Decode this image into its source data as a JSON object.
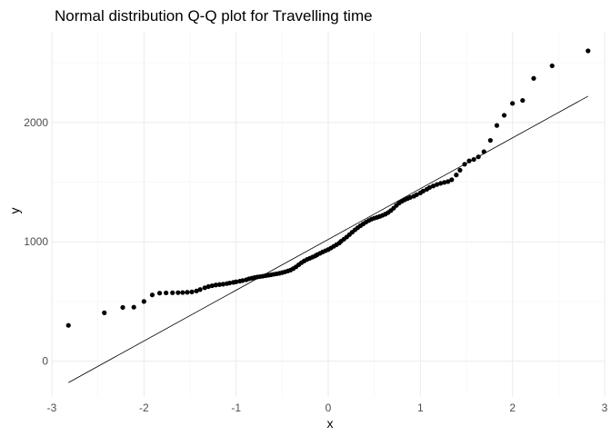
{
  "chart_data": {
    "type": "scatter",
    "title": "Normal distribution Q-Q plot for Travelling time",
    "xlabel": "x",
    "ylabel": "y",
    "xlim": [
      -3,
      3
    ],
    "ylim": [
      -300,
      2760
    ],
    "x_ticks": [
      -3,
      -2,
      -1,
      0,
      1,
      2,
      3
    ],
    "y_ticks": [
      0,
      1000,
      2000
    ],
    "grid": true,
    "legend": "none",
    "colors": {
      "points": "#000000",
      "line": "#000000",
      "grid": "#ebebeb"
    },
    "reference_line": {
      "x": [
        -2.82,
        2.82
      ],
      "y": [
        -180,
        2220
      ]
    },
    "points": [
      [
        -2.82,
        300
      ],
      [
        -2.43,
        405
      ],
      [
        -2.23,
        450
      ],
      [
        -2.11,
        452
      ],
      [
        -2.0,
        500
      ],
      [
        -1.91,
        555
      ],
      [
        -1.83,
        570
      ],
      [
        -1.76,
        572
      ],
      [
        -1.69,
        573
      ],
      [
        -1.63,
        574
      ],
      [
        -1.58,
        575
      ],
      [
        -1.53,
        577
      ],
      [
        -1.48,
        580
      ],
      [
        -1.43,
        588
      ],
      [
        -1.39,
        600
      ],
      [
        -1.34,
        615
      ],
      [
        -1.3,
        625
      ],
      [
        -1.26,
        632
      ],
      [
        -1.22,
        638
      ],
      [
        -1.18,
        642
      ],
      [
        -1.14,
        645
      ],
      [
        -1.1,
        650
      ],
      [
        -1.07,
        655
      ],
      [
        -1.03,
        660
      ],
      [
        -1.0,
        665
      ],
      [
        -0.96,
        670
      ],
      [
        -0.93,
        675
      ],
      [
        -0.89,
        682
      ],
      [
        -0.86,
        690
      ],
      [
        -0.83,
        695
      ],
      [
        -0.8,
        700
      ],
      [
        -0.77,
        705
      ],
      [
        -0.74,
        708
      ],
      [
        -0.71,
        712
      ],
      [
        -0.68,
        716
      ],
      [
        -0.65,
        720
      ],
      [
        -0.62,
        724
      ],
      [
        -0.59,
        728
      ],
      [
        -0.56,
        732
      ],
      [
        -0.53,
        736
      ],
      [
        -0.5,
        742
      ],
      [
        -0.47,
        748
      ],
      [
        -0.44,
        755
      ],
      [
        -0.41,
        763
      ],
      [
        -0.38,
        775
      ],
      [
        -0.35,
        790
      ],
      [
        -0.32,
        808
      ],
      [
        -0.29,
        825
      ],
      [
        -0.26,
        840
      ],
      [
        -0.23,
        852
      ],
      [
        -0.2,
        862
      ],
      [
        -0.17,
        872
      ],
      [
        -0.14,
        882
      ],
      [
        -0.12,
        892
      ],
      [
        -0.09,
        903
      ],
      [
        -0.06,
        915
      ],
      [
        -0.03,
        925
      ],
      [
        0.0,
        935
      ],
      [
        0.03,
        948
      ],
      [
        0.06,
        962
      ],
      [
        0.09,
        976
      ],
      [
        0.12,
        990
      ],
      [
        0.14,
        1005
      ],
      [
        0.17,
        1022
      ],
      [
        0.2,
        1040
      ],
      [
        0.23,
        1060
      ],
      [
        0.26,
        1080
      ],
      [
        0.29,
        1100
      ],
      [
        0.32,
        1118
      ],
      [
        0.35,
        1135
      ],
      [
        0.38,
        1150
      ],
      [
        0.41,
        1165
      ],
      [
        0.44,
        1178
      ],
      [
        0.47,
        1190
      ],
      [
        0.5,
        1198
      ],
      [
        0.53,
        1205
      ],
      [
        0.56,
        1213
      ],
      [
        0.59,
        1222
      ],
      [
        0.62,
        1232
      ],
      [
        0.65,
        1245
      ],
      [
        0.68,
        1262
      ],
      [
        0.71,
        1282
      ],
      [
        0.74,
        1305
      ],
      [
        0.77,
        1325
      ],
      [
        0.8,
        1340
      ],
      [
        0.83,
        1352
      ],
      [
        0.86,
        1362
      ],
      [
        0.89,
        1372
      ],
      [
        0.93,
        1382
      ],
      [
        0.96,
        1395
      ],
      [
        1.0,
        1410
      ],
      [
        1.03,
        1425
      ],
      [
        1.07,
        1440
      ],
      [
        1.1,
        1455
      ],
      [
        1.14,
        1468
      ],
      [
        1.18,
        1480
      ],
      [
        1.22,
        1490
      ],
      [
        1.26,
        1498
      ],
      [
        1.3,
        1505
      ],
      [
        1.34,
        1520
      ],
      [
        1.39,
        1560
      ],
      [
        1.43,
        1600
      ],
      [
        1.48,
        1650
      ],
      [
        1.53,
        1678
      ],
      [
        1.58,
        1690
      ],
      [
        1.63,
        1712
      ],
      [
        1.69,
        1755
      ],
      [
        1.76,
        1850
      ],
      [
        1.83,
        1975
      ],
      [
        1.91,
        2060
      ],
      [
        2.0,
        2160
      ],
      [
        2.11,
        2185
      ],
      [
        2.23,
        2370
      ],
      [
        2.43,
        2475
      ],
      [
        2.82,
        2600
      ]
    ]
  }
}
